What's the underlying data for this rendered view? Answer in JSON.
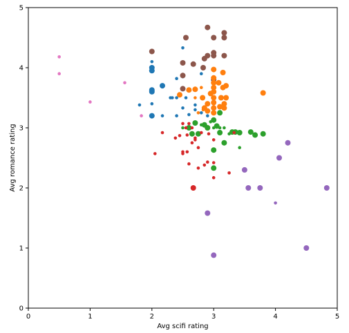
{
  "chart_data": {
    "type": "scatter",
    "xlabel": "Avg scifi rating",
    "ylabel": "Avg romance rating",
    "xlim": [
      0,
      5
    ],
    "ylim": [
      0,
      5
    ],
    "xticks": [
      "0",
      "1",
      "2",
      "3",
      "4",
      "5"
    ],
    "yticks": [
      "0",
      "1",
      "2",
      "3",
      "4",
      "5"
    ],
    "grid": false,
    "colors": {
      "blue": "#1f77b4",
      "orange": "#ff7f0e",
      "green": "#2ca02c",
      "red": "#d62728",
      "purple": "#9467bd",
      "brown": "#8c564b",
      "pink": "#e377c2"
    },
    "series": [
      {
        "color": "pink",
        "points": [
          [
            0.5,
            4.18,
            1
          ],
          [
            0.5,
            3.9,
            1
          ],
          [
            1.0,
            3.43,
            1
          ],
          [
            1.56,
            3.75,
            1
          ],
          [
            1.83,
            3.2,
            1
          ]
        ]
      },
      {
        "color": "blue",
        "points": [
          [
            1.8,
            3.38,
            1
          ],
          [
            2.0,
            4.1,
            1
          ],
          [
            2.0,
            4.0,
            2
          ],
          [
            2.0,
            3.95,
            2
          ],
          [
            2.0,
            3.63,
            2
          ],
          [
            2.0,
            3.6,
            2
          ],
          [
            2.0,
            3.4,
            1
          ],
          [
            2.0,
            3.2,
            2
          ],
          [
            2.17,
            3.7,
            2
          ],
          [
            2.17,
            3.2,
            1
          ],
          [
            2.3,
            3.5,
            1
          ],
          [
            2.33,
            3.5,
            1
          ],
          [
            2.4,
            3.5,
            1
          ],
          [
            2.4,
            3.82,
            1
          ],
          [
            2.4,
            3.2,
            1
          ],
          [
            2.5,
            4.33,
            1
          ],
          [
            2.5,
            3.85,
            1
          ],
          [
            2.5,
            3.33,
            1
          ],
          [
            2.55,
            3.5,
            1
          ],
          [
            2.6,
            3.22,
            1
          ],
          [
            2.7,
            3.3,
            1
          ],
          [
            2.7,
            3.38,
            1
          ],
          [
            2.8,
            3.9,
            1
          ],
          [
            2.8,
            3.25,
            1
          ],
          [
            2.9,
            3.2,
            1
          ]
        ]
      },
      {
        "color": "brown",
        "points": [
          [
            2.0,
            4.27,
            2
          ],
          [
            2.5,
            4.08,
            2
          ],
          [
            2.5,
            3.87,
            2
          ],
          [
            2.55,
            4.5,
            2
          ],
          [
            2.67,
            4.06,
            2
          ],
          [
            2.83,
            4.0,
            2
          ],
          [
            2.85,
            4.15,
            2
          ],
          [
            2.9,
            4.67,
            2
          ],
          [
            2.9,
            4.2,
            2
          ],
          [
            3.0,
            4.5,
            2
          ],
          [
            3.0,
            4.25,
            2
          ],
          [
            3.0,
            4.2,
            2
          ],
          [
            3.0,
            3.8,
            2
          ],
          [
            3.17,
            4.58,
            2
          ],
          [
            3.17,
            4.5,
            2
          ],
          [
            3.17,
            4.2,
            2
          ],
          [
            2.5,
            3.65,
            2
          ]
        ]
      },
      {
        "color": "orange",
        "points": [
          [
            2.45,
            3.55,
            2
          ],
          [
            2.6,
            3.63,
            2
          ],
          [
            2.7,
            3.64,
            2
          ],
          [
            2.7,
            3.5,
            1
          ],
          [
            2.75,
            3.25,
            1
          ],
          [
            2.8,
            3.67,
            1
          ],
          [
            2.82,
            3.5,
            2
          ],
          [
            2.85,
            3.33,
            2
          ],
          [
            2.9,
            3.4,
            2
          ],
          [
            2.9,
            3.28,
            2
          ],
          [
            2.95,
            3.57,
            2
          ],
          [
            3.0,
            3.97,
            2
          ],
          [
            3.0,
            3.83,
            2
          ],
          [
            3.0,
            3.75,
            2
          ],
          [
            3.0,
            3.67,
            2
          ],
          [
            3.0,
            3.6,
            2
          ],
          [
            3.0,
            3.5,
            2
          ],
          [
            3.0,
            3.42,
            2
          ],
          [
            3.0,
            3.33,
            2
          ],
          [
            3.0,
            3.25,
            2
          ],
          [
            3.08,
            3.75,
            2
          ],
          [
            3.1,
            3.35,
            2
          ],
          [
            3.12,
            3.5,
            2
          ],
          [
            3.15,
            3.92,
            2
          ],
          [
            3.15,
            3.67,
            2
          ],
          [
            3.17,
            3.4,
            2
          ],
          [
            3.17,
            3.33,
            2
          ],
          [
            3.2,
            3.7,
            2
          ],
          [
            3.2,
            3.5,
            2
          ],
          [
            3.8,
            3.58,
            2
          ],
          [
            2.9,
            3.0,
            2
          ],
          [
            2.83,
            3.3,
            1
          ]
        ]
      },
      {
        "color": "green",
        "points": [
          [
            2.5,
            3.0,
            1
          ],
          [
            2.6,
            3.0,
            2
          ],
          [
            2.65,
            2.9,
            2
          ],
          [
            2.7,
            3.08,
            2
          ],
          [
            2.75,
            2.9,
            2
          ],
          [
            2.8,
            3.05,
            1
          ],
          [
            2.85,
            3.05,
            2
          ],
          [
            2.9,
            3.0,
            2
          ],
          [
            2.95,
            3.1,
            1
          ],
          [
            3.0,
            3.13,
            2
          ],
          [
            3.0,
            3.0,
            1
          ],
          [
            3.05,
            3.03,
            2
          ],
          [
            3.1,
            3.25,
            2
          ],
          [
            3.1,
            3.0,
            1
          ],
          [
            3.17,
            3.0,
            1
          ],
          [
            3.17,
            2.75,
            2
          ],
          [
            3.3,
            2.93,
            2
          ],
          [
            3.35,
            2.93,
            2
          ],
          [
            3.42,
            2.92,
            2
          ],
          [
            3.42,
            2.67,
            1
          ],
          [
            3.6,
            2.93,
            2
          ],
          [
            3.67,
            2.88,
            2
          ],
          [
            3.8,
            2.9,
            2
          ],
          [
            3.0,
            2.63,
            2
          ],
          [
            3.0,
            2.33,
            2
          ],
          [
            3.1,
            2.92,
            2
          ],
          [
            3.25,
            2.9,
            1
          ]
        ]
      },
      {
        "color": "red",
        "points": [
          [
            2.05,
            2.57,
            1
          ],
          [
            2.17,
            2.92,
            1
          ],
          [
            2.38,
            2.83,
            1
          ],
          [
            2.45,
            2.87,
            1
          ],
          [
            2.5,
            3.07,
            1
          ],
          [
            2.5,
            2.6,
            1
          ],
          [
            2.5,
            2.57,
            1
          ],
          [
            2.55,
            3.0,
            1
          ],
          [
            2.57,
            2.88,
            1
          ],
          [
            2.57,
            2.6,
            1
          ],
          [
            2.6,
            3.07,
            1
          ],
          [
            2.6,
            2.4,
            1
          ],
          [
            2.65,
            2.75,
            1
          ],
          [
            2.67,
            2.0,
            2
          ],
          [
            2.7,
            2.83,
            1
          ],
          [
            2.7,
            2.8,
            1
          ],
          [
            2.75,
            2.67,
            1
          ],
          [
            2.75,
            2.33,
            1
          ],
          [
            2.8,
            2.92,
            1
          ],
          [
            2.85,
            2.38,
            1
          ],
          [
            2.9,
            2.43,
            1
          ],
          [
            2.92,
            2.9,
            1
          ],
          [
            3.0,
            2.8,
            1
          ],
          [
            3.0,
            2.42,
            1
          ],
          [
            3.0,
            2.17,
            1
          ],
          [
            3.25,
            2.25,
            1
          ],
          [
            3.33,
            2.92,
            1
          ],
          [
            2.65,
            3.0,
            1
          ]
        ]
      },
      {
        "color": "purple",
        "points": [
          [
            2.9,
            1.58,
            2
          ],
          [
            3.0,
            0.88,
            2
          ],
          [
            3.5,
            2.3,
            2
          ],
          [
            3.56,
            2.0,
            2
          ],
          [
            3.75,
            2.0,
            2
          ],
          [
            4.0,
            1.75,
            1
          ],
          [
            4.06,
            2.5,
            2
          ],
          [
            4.2,
            2.75,
            2
          ],
          [
            4.5,
            1.0,
            2
          ],
          [
            4.83,
            2.0,
            2
          ]
        ]
      }
    ]
  }
}
